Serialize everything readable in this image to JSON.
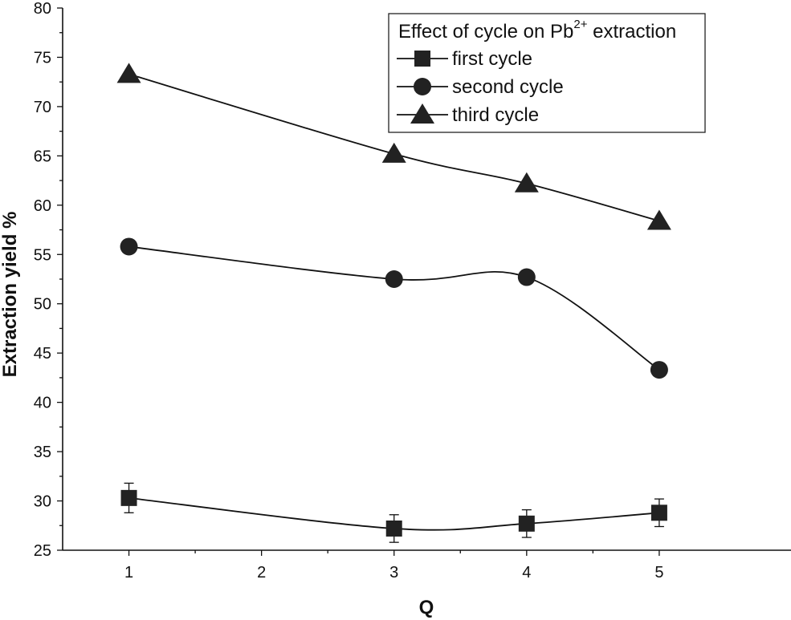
{
  "chart_data": {
    "type": "line",
    "title": "",
    "xlabel": "Q",
    "ylabel": "Extraction yield %",
    "x": [
      1,
      3,
      4,
      5
    ],
    "xlim": [
      0.5,
      6.0
    ],
    "ylim": [
      25,
      80
    ],
    "x_ticks": [
      1,
      2,
      3,
      4,
      5
    ],
    "y_ticks": [
      25,
      30,
      35,
      40,
      45,
      50,
      55,
      60,
      65,
      70,
      75,
      80
    ],
    "grid": false,
    "legend": {
      "title_prefix": "Effect of cycle on ",
      "title_species": "Pb",
      "title_superscript": "2+",
      "title_suffix": " extraction",
      "placement": "top-right"
    },
    "series": [
      {
        "name": "first cycle",
        "marker": "square",
        "values": [
          30.3,
          27.2,
          27.7,
          28.8
        ],
        "errors": [
          1.5,
          1.4,
          1.4,
          1.4
        ]
      },
      {
        "name": "second cycle",
        "marker": "circle",
        "values": [
          55.8,
          52.5,
          52.7,
          43.3
        ]
      },
      {
        "name": "third cycle",
        "marker": "triangle",
        "values": [
          73.3,
          65.2,
          62.2,
          58.4
        ]
      }
    ]
  }
}
